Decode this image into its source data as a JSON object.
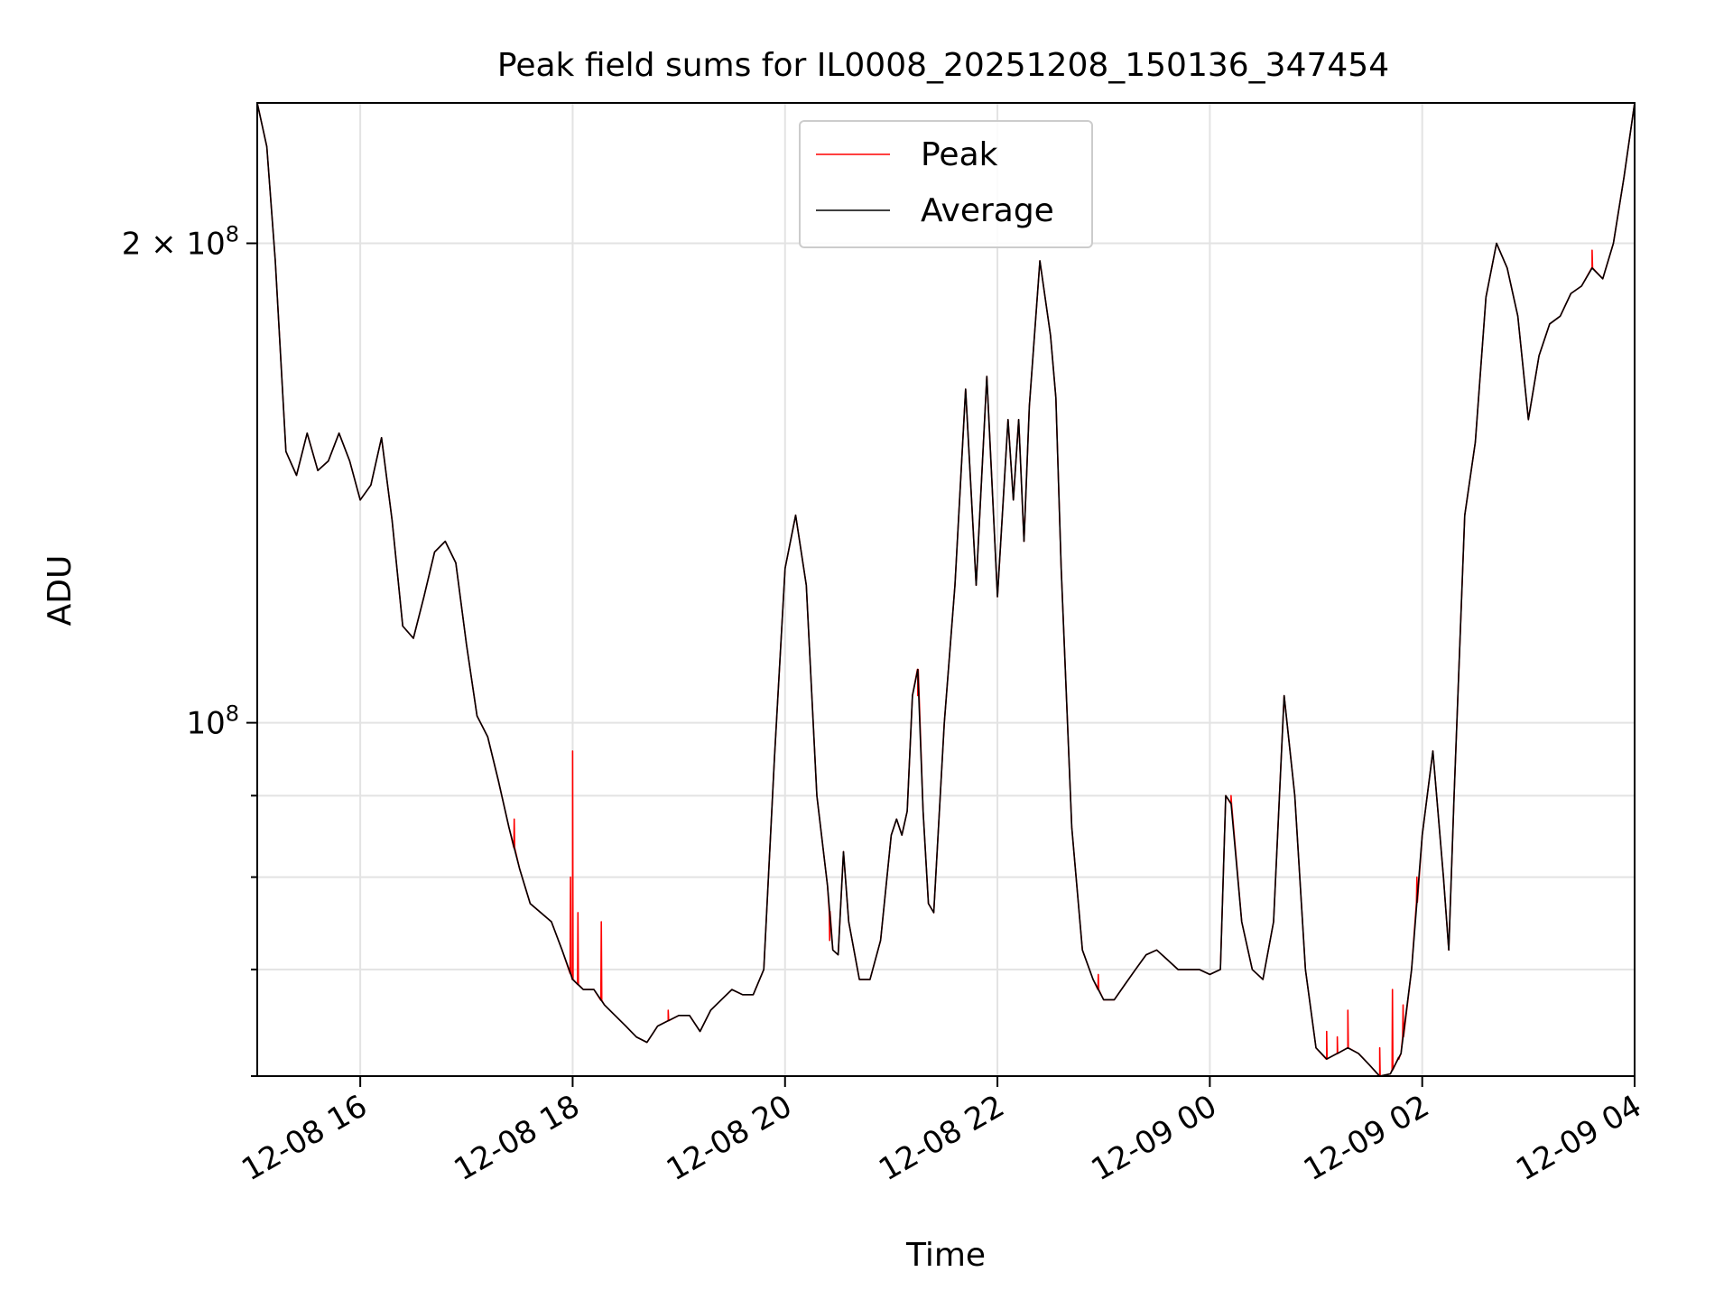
{
  "chart_data": {
    "type": "line",
    "title": "Peak field sums for IL0008_20251208_150136_347454",
    "xlabel": "Time",
    "ylabel": "ADU",
    "x_ticks": [
      "12-08 16",
      "12-08 18",
      "12-08 20",
      "12-08 22",
      "12-09 00",
      "12-09 02",
      "12-09 04"
    ],
    "x_tick_hours": [
      16,
      18,
      20,
      22,
      24,
      26,
      28
    ],
    "xlim_hours": [
      15.03,
      28.0
    ],
    "y_scale": "log",
    "ylim": [
      60000000,
      245000000
    ],
    "y_major_ticks": [
      {
        "value": 100000000,
        "mantissa": "",
        "exp": "8"
      },
      {
        "value": 200000000,
        "mantissa": "2 × ",
        "exp": "8"
      }
    ],
    "y_minor_ticks": [
      60000000,
      70000000,
      80000000,
      90000000
    ],
    "grid": true,
    "legend": {
      "position": "top-center",
      "entries": [
        "Peak",
        "Average"
      ]
    },
    "series": [
      {
        "name": "Average",
        "color": "#000000",
        "points": [
          [
            15.03,
            245000000
          ],
          [
            15.12,
            230000000
          ],
          [
            15.2,
            195000000
          ],
          [
            15.3,
            148000000
          ],
          [
            15.4,
            143000000
          ],
          [
            15.5,
            152000000
          ],
          [
            15.6,
            144000000
          ],
          [
            15.7,
            146000000
          ],
          [
            15.8,
            152000000
          ],
          [
            15.9,
            146000000
          ],
          [
            16.0,
            138000000
          ],
          [
            16.1,
            141000000
          ],
          [
            16.2,
            151000000
          ],
          [
            16.3,
            134000000
          ],
          [
            16.4,
            115000000
          ],
          [
            16.5,
            113000000
          ],
          [
            16.6,
            120000000
          ],
          [
            16.7,
            128000000
          ],
          [
            16.8,
            130000000
          ],
          [
            16.9,
            126000000
          ],
          [
            17.0,
            112000000
          ],
          [
            17.1,
            101000000
          ],
          [
            17.2,
            98000000
          ],
          [
            17.3,
            92000000
          ],
          [
            17.4,
            86000000
          ],
          [
            17.5,
            81000000
          ],
          [
            17.6,
            77000000
          ],
          [
            17.7,
            76000000
          ],
          [
            17.8,
            75000000
          ],
          [
            17.9,
            72000000
          ],
          [
            18.0,
            69000000
          ],
          [
            18.1,
            68000000
          ],
          [
            18.2,
            68000000
          ],
          [
            18.3,
            66500000
          ],
          [
            18.5,
            64500000
          ],
          [
            18.6,
            63500000
          ],
          [
            18.7,
            63000000
          ],
          [
            18.8,
            64500000
          ],
          [
            18.9,
            65000000
          ],
          [
            19.0,
            65500000
          ],
          [
            19.1,
            65500000
          ],
          [
            19.2,
            64000000
          ],
          [
            19.3,
            66000000
          ],
          [
            19.4,
            67000000
          ],
          [
            19.5,
            68000000
          ],
          [
            19.6,
            67500000
          ],
          [
            19.7,
            67500000
          ],
          [
            19.8,
            70000000
          ],
          [
            19.9,
            95000000
          ],
          [
            20.0,
            125000000
          ],
          [
            20.1,
            135000000
          ],
          [
            20.2,
            122000000
          ],
          [
            20.3,
            90000000
          ],
          [
            20.4,
            79000000
          ],
          [
            20.45,
            72000000
          ],
          [
            20.5,
            71500000
          ],
          [
            20.55,
            83000000
          ],
          [
            20.6,
            75000000
          ],
          [
            20.7,
            69000000
          ],
          [
            20.8,
            69000000
          ],
          [
            20.9,
            73000000
          ],
          [
            21.0,
            85000000
          ],
          [
            21.05,
            87000000
          ],
          [
            21.1,
            85000000
          ],
          [
            21.15,
            88000000
          ],
          [
            21.2,
            104000000
          ],
          [
            21.25,
            108000000
          ],
          [
            21.3,
            88000000
          ],
          [
            21.35,
            77000000
          ],
          [
            21.4,
            76000000
          ],
          [
            21.5,
            100000000
          ],
          [
            21.6,
            122000000
          ],
          [
            21.7,
            162000000
          ],
          [
            21.8,
            122000000
          ],
          [
            21.9,
            165000000
          ],
          [
            22.0,
            120000000
          ],
          [
            22.1,
            155000000
          ],
          [
            22.15,
            138000000
          ],
          [
            22.2,
            155000000
          ],
          [
            22.25,
            130000000
          ],
          [
            22.3,
            158000000
          ],
          [
            22.4,
            195000000
          ],
          [
            22.5,
            175000000
          ],
          [
            22.55,
            160000000
          ],
          [
            22.6,
            125000000
          ],
          [
            22.7,
            86000000
          ],
          [
            22.8,
            72000000
          ],
          [
            22.9,
            69000000
          ],
          [
            23.0,
            67000000
          ],
          [
            23.1,
            67000000
          ],
          [
            23.2,
            68500000
          ],
          [
            23.3,
            70000000
          ],
          [
            23.4,
            71500000
          ],
          [
            23.5,
            72000000
          ],
          [
            23.6,
            71000000
          ],
          [
            23.7,
            70000000
          ],
          [
            23.8,
            70000000
          ],
          [
            23.9,
            70000000
          ],
          [
            24.0,
            69500000
          ],
          [
            24.1,
            70000000
          ],
          [
            24.15,
            90000000
          ],
          [
            24.2,
            89000000
          ],
          [
            24.3,
            75000000
          ],
          [
            24.4,
            70000000
          ],
          [
            24.5,
            69000000
          ],
          [
            24.6,
            75000000
          ],
          [
            24.7,
            104000000
          ],
          [
            24.8,
            90000000
          ],
          [
            24.9,
            70000000
          ],
          [
            25.0,
            62500000
          ],
          [
            25.1,
            61500000
          ],
          [
            25.2,
            62000000
          ],
          [
            25.3,
            62500000
          ],
          [
            25.4,
            62000000
          ],
          [
            25.5,
            61000000
          ],
          [
            25.6,
            60000000
          ],
          [
            25.7,
            60200000
          ],
          [
            25.8,
            62000000
          ],
          [
            25.9,
            70000000
          ],
          [
            26.0,
            85000000
          ],
          [
            26.1,
            96000000
          ],
          [
            26.2,
            80000000
          ],
          [
            26.25,
            72000000
          ],
          [
            26.3,
            90000000
          ],
          [
            26.4,
            135000000
          ],
          [
            26.5,
            150000000
          ],
          [
            26.6,
            185000000
          ],
          [
            26.7,
            200000000
          ],
          [
            26.8,
            193000000
          ],
          [
            26.9,
            180000000
          ],
          [
            27.0,
            155000000
          ],
          [
            27.1,
            170000000
          ],
          [
            27.2,
            178000000
          ],
          [
            27.3,
            180000000
          ],
          [
            27.4,
            186000000
          ],
          [
            27.5,
            188000000
          ],
          [
            27.6,
            193000000
          ],
          [
            27.7,
            190000000
          ],
          [
            27.8,
            200000000
          ],
          [
            27.9,
            220000000
          ],
          [
            28.0,
            245000000
          ]
        ]
      },
      {
        "name": "Peak",
        "color": "#ff0000",
        "spikes": [
          [
            17.45,
            87000000
          ],
          [
            17.98,
            80000000
          ],
          [
            18.0,
            96000000
          ],
          [
            18.05,
            76000000
          ],
          [
            18.27,
            75000000
          ],
          [
            18.9,
            66000000
          ],
          [
            20.42,
            73000000
          ],
          [
            21.25,
            104000000
          ],
          [
            22.95,
            69500000
          ],
          [
            24.2,
            90000000
          ],
          [
            25.1,
            64000000
          ],
          [
            25.2,
            63500000
          ],
          [
            25.3,
            66000000
          ],
          [
            25.6,
            62500000
          ],
          [
            25.72,
            68000000
          ],
          [
            25.78,
            61500000
          ],
          [
            25.82,
            66500000
          ],
          [
            25.95,
            80000000
          ],
          [
            27.6,
            198000000
          ]
        ]
      }
    ]
  }
}
